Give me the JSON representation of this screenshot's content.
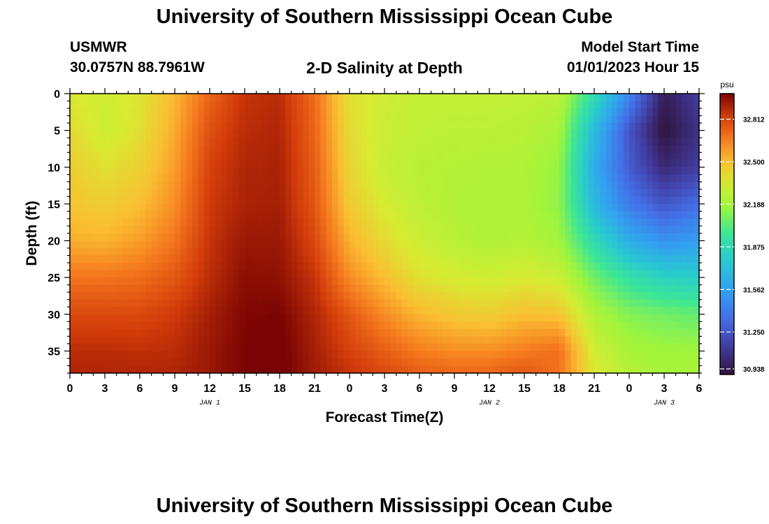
{
  "header": {
    "title": "University of Southern Mississippi Ocean Cube",
    "station": "USMWR",
    "coordinates": "30.0757N  88.7961W",
    "subtitle": "2-D Salinity at Depth",
    "model_label": "Model Start Time",
    "model_time": "01/01/2023 Hour 15"
  },
  "footer": {
    "title": "University of Southern Mississippi Ocean Cube"
  },
  "chart_data": {
    "type": "heatmap",
    "title": "2-D Salinity at Depth",
    "xlabel": "Forecast Time(Z)",
    "ylabel": "Depth (ft)",
    "x_unit": "hours from 00Z Jan 1",
    "xlim": [
      0,
      54
    ],
    "ylim": [
      0,
      38
    ],
    "x_ticks": [
      0,
      3,
      6,
      9,
      12,
      15,
      18,
      21,
      24,
      27,
      30,
      33,
      36,
      39,
      42,
      45,
      48,
      51,
      54
    ],
    "x_tick_labels": [
      "0",
      "3",
      "6",
      "9",
      "12",
      "15",
      "18",
      "21",
      "0",
      "3",
      "6",
      "9",
      "12",
      "15",
      "18",
      "21",
      "0",
      "3",
      "6"
    ],
    "day_labels": [
      {
        "x": 12,
        "label": "JAN 1"
      },
      {
        "x": 36,
        "label": "JAN 2"
      },
      {
        "x": 51,
        "label": "JAN 3"
      }
    ],
    "y_ticks": [
      0,
      5,
      10,
      15,
      20,
      25,
      30,
      35
    ],
    "y_tick_labels": [
      "0",
      "5",
      "10",
      "15",
      "20",
      "25",
      "30",
      "35"
    ],
    "colorbar": {
      "unit": "psu",
      "min": 30.938,
      "max": 33.0,
      "ticks": [
        32.812,
        32.5,
        32.188,
        31.875,
        31.562,
        31.25,
        30.938
      ],
      "tick_labels": [
        "32.812",
        "32.500",
        "32.188",
        "31.875",
        "31.562",
        "31.250",
        "30.938"
      ]
    },
    "grid": {
      "x": [
        0,
        3,
        6,
        9,
        12,
        15,
        18,
        21,
        24,
        27,
        30,
        33,
        36,
        39,
        42,
        45,
        48,
        51,
        54
      ],
      "depth": [
        0,
        5,
        10,
        15,
        20,
        25,
        30,
        35,
        38
      ],
      "values": [
        [
          32.35,
          32.31,
          32.36,
          32.52,
          32.72,
          32.86,
          32.88,
          32.7,
          32.38,
          32.31,
          32.28,
          32.28,
          32.28,
          32.27,
          32.26,
          31.9,
          31.45,
          31.0,
          31.15
        ],
        [
          32.41,
          32.3,
          32.38,
          32.55,
          32.78,
          32.88,
          32.9,
          32.72,
          32.4,
          32.3,
          32.27,
          32.26,
          32.26,
          32.25,
          32.2,
          31.7,
          31.25,
          30.94,
          31.1
        ],
        [
          32.45,
          32.38,
          32.44,
          32.58,
          32.82,
          32.9,
          32.91,
          32.74,
          32.42,
          32.29,
          32.25,
          32.24,
          32.23,
          32.23,
          32.15,
          31.62,
          31.28,
          31.05,
          31.15
        ],
        [
          32.48,
          32.45,
          32.5,
          32.62,
          32.84,
          32.91,
          32.92,
          32.76,
          32.46,
          32.33,
          32.26,
          32.23,
          32.22,
          32.22,
          32.14,
          31.68,
          31.4,
          31.25,
          31.35
        ],
        [
          32.54,
          32.53,
          32.58,
          32.68,
          32.86,
          32.94,
          32.94,
          32.8,
          32.53,
          32.4,
          32.3,
          32.25,
          32.22,
          32.24,
          32.18,
          31.88,
          31.62,
          31.5,
          31.55
        ],
        [
          32.68,
          32.68,
          32.7,
          32.76,
          32.88,
          32.97,
          32.96,
          32.86,
          32.62,
          32.5,
          32.38,
          32.33,
          32.31,
          32.34,
          32.3,
          32.08,
          31.92,
          31.82,
          31.8
        ],
        [
          32.8,
          32.8,
          32.8,
          32.84,
          32.92,
          32.99,
          33.0,
          32.9,
          32.76,
          32.62,
          32.52,
          32.47,
          32.45,
          32.5,
          32.48,
          32.22,
          32.12,
          32.08,
          32.05
        ],
        [
          32.88,
          32.88,
          32.87,
          32.88,
          32.94,
          33.0,
          33.02,
          32.92,
          32.82,
          32.74,
          32.66,
          32.62,
          32.62,
          32.66,
          32.7,
          32.32,
          32.2,
          32.18,
          32.18
        ],
        [
          32.9,
          32.9,
          32.9,
          32.9,
          32.94,
          33.0,
          33.02,
          32.93,
          32.86,
          32.8,
          32.74,
          32.72,
          32.72,
          32.76,
          32.68,
          32.35,
          32.24,
          32.2,
          32.2
        ]
      ]
    }
  }
}
